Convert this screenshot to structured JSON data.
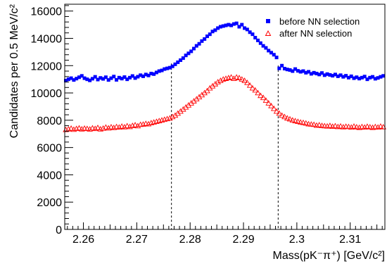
{
  "chart_data": {
    "type": "scatter",
    "title": "",
    "xlabel": "Mass(pK⁻π⁺) [GeV/c²]",
    "ylabel": "Candidates per 0.5 MeV/c²",
    "xlim": [
      2.2565,
      2.3165
    ],
    "ylim": [
      0,
      16500
    ],
    "x_ticks": [
      2.26,
      2.27,
      2.28,
      2.29,
      2.3,
      2.31
    ],
    "x_tick_labels": [
      "2.26",
      "2.27",
      "2.28",
      "2.29",
      "2.3",
      "2.31"
    ],
    "y_ticks": [
      0,
      2000,
      4000,
      6000,
      8000,
      10000,
      12000,
      14000,
      16000
    ],
    "y_tick_labels": [
      "0",
      "2000",
      "4000",
      "6000",
      "8000",
      "10000",
      "12000",
      "14000",
      "16000"
    ],
    "grid": false,
    "legend_position": "top-right",
    "reference_lines_x": [
      2.2765,
      2.2965
    ],
    "series": [
      {
        "name": "before NN selection",
        "marker": "filled-square",
        "color": "#0000ff",
        "x": [
          2.2567,
          2.2572,
          2.2577,
          2.2582,
          2.2587,
          2.2592,
          2.2597,
          2.2602,
          2.2607,
          2.2612,
          2.2617,
          2.2622,
          2.2627,
          2.2632,
          2.2637,
          2.2642,
          2.2647,
          2.2652,
          2.2657,
          2.2662,
          2.2667,
          2.2672,
          2.2677,
          2.2682,
          2.2687,
          2.2692,
          2.2697,
          2.2702,
          2.2707,
          2.2712,
          2.2717,
          2.2722,
          2.2727,
          2.2732,
          2.2737,
          2.2742,
          2.2747,
          2.2752,
          2.2757,
          2.2762,
          2.2767,
          2.2772,
          2.2777,
          2.2782,
          2.2787,
          2.2792,
          2.2797,
          2.2802,
          2.2807,
          2.2812,
          2.2817,
          2.2822,
          2.2827,
          2.2832,
          2.2837,
          2.2842,
          2.2847,
          2.2852,
          2.2857,
          2.2862,
          2.2867,
          2.2872,
          2.2877,
          2.2882,
          2.2887,
          2.2892,
          2.2897,
          2.2902,
          2.2907,
          2.2912,
          2.2917,
          2.2922,
          2.2927,
          2.2932,
          2.2937,
          2.2942,
          2.2947,
          2.2952,
          2.2957,
          2.2962,
          2.2967,
          2.2972,
          2.2977,
          2.2982,
          2.2987,
          2.2992,
          2.2997,
          2.3002,
          2.3007,
          2.3012,
          2.3017,
          2.3022,
          2.3027,
          2.3032,
          2.3037,
          2.3042,
          2.3047,
          2.3052,
          2.3057,
          2.3062,
          2.3067,
          2.3072,
          2.3077,
          2.3082,
          2.3087,
          2.3092,
          2.3097,
          2.3102,
          2.3107,
          2.3112,
          2.3117,
          2.3122,
          2.3127,
          2.3132,
          2.3137,
          2.3142,
          2.3147,
          2.3152,
          2.3157,
          2.3162
        ],
        "values": [
          10900,
          11000,
          11080,
          10950,
          11050,
          11150,
          11250,
          11080,
          11000,
          10920,
          11040,
          11180,
          10980,
          11100,
          11030,
          11150,
          10950,
          11080,
          11200,
          10960,
          11120,
          11050,
          11160,
          11000,
          11120,
          11240,
          11090,
          11190,
          11300,
          11220,
          11350,
          11280,
          11420,
          11380,
          11500,
          11600,
          11650,
          11750,
          11800,
          11850,
          11950,
          12100,
          12250,
          12400,
          12550,
          12750,
          12900,
          13050,
          13250,
          13450,
          13600,
          13800,
          13950,
          14150,
          14300,
          14500,
          14600,
          14750,
          14850,
          14900,
          14950,
          15000,
          14950,
          15050,
          15100,
          14850,
          15000,
          14750,
          14650,
          14450,
          14300,
          14050,
          13850,
          13650,
          13450,
          13300,
          13100,
          12950,
          12800,
          12600,
          11800,
          12000,
          11780,
          11720,
          11680,
          11600,
          11750,
          11620,
          11550,
          11600,
          11480,
          11550,
          11400,
          11480,
          11420,
          11350,
          11460,
          11300,
          11380,
          11320,
          11260,
          11350,
          11220,
          11300,
          11180,
          11260,
          11120,
          11220,
          11080,
          11150,
          11050,
          11120,
          11200,
          11000,
          11120,
          11180,
          11040,
          11100,
          11180,
          11250
        ]
      },
      {
        "name": "after NN selection",
        "marker": "open-triangle",
        "color": "#ff0000",
        "x": [
          2.2567,
          2.2572,
          2.2577,
          2.2582,
          2.2587,
          2.2592,
          2.2597,
          2.2602,
          2.2607,
          2.2612,
          2.2617,
          2.2622,
          2.2627,
          2.2632,
          2.2637,
          2.2642,
          2.2647,
          2.2652,
          2.2657,
          2.2662,
          2.2667,
          2.2672,
          2.2677,
          2.2682,
          2.2687,
          2.2692,
          2.2697,
          2.2702,
          2.2707,
          2.2712,
          2.2717,
          2.2722,
          2.2727,
          2.2732,
          2.2737,
          2.2742,
          2.2747,
          2.2752,
          2.2757,
          2.2762,
          2.2767,
          2.2772,
          2.2777,
          2.2782,
          2.2787,
          2.2792,
          2.2797,
          2.2802,
          2.2807,
          2.2812,
          2.2817,
          2.2822,
          2.2827,
          2.2832,
          2.2837,
          2.2842,
          2.2847,
          2.2852,
          2.2857,
          2.2862,
          2.2867,
          2.2872,
          2.2877,
          2.2882,
          2.2887,
          2.2892,
          2.2897,
          2.2902,
          2.2907,
          2.2912,
          2.2917,
          2.2922,
          2.2927,
          2.2932,
          2.2937,
          2.2942,
          2.2947,
          2.2952,
          2.2957,
          2.2962,
          2.2967,
          2.2972,
          2.2977,
          2.2982,
          2.2987,
          2.2992,
          2.2997,
          2.3002,
          2.3007,
          2.3012,
          2.3017,
          2.3022,
          2.3027,
          2.3032,
          2.3037,
          2.3042,
          2.3047,
          2.3052,
          2.3057,
          2.3062,
          2.3067,
          2.3072,
          2.3077,
          2.3082,
          2.3087,
          2.3092,
          2.3097,
          2.3102,
          2.3107,
          2.3112,
          2.3117,
          2.3122,
          2.3127,
          2.3132,
          2.3137,
          2.3142,
          2.3147,
          2.3152,
          2.3157,
          2.3162
        ],
        "values": [
          7300,
          7350,
          7400,
          7320,
          7380,
          7420,
          7350,
          7400,
          7380,
          7340,
          7420,
          7380,
          7450,
          7350,
          7400,
          7480,
          7420,
          7500,
          7450,
          7520,
          7480,
          7550,
          7500,
          7580,
          7520,
          7600,
          7650,
          7580,
          7680,
          7700,
          7750,
          7720,
          7800,
          7850,
          7900,
          7950,
          8000,
          8050,
          8100,
          8150,
          8250,
          8350,
          8500,
          8650,
          8800,
          8950,
          9100,
          9250,
          9400,
          9550,
          9700,
          9850,
          10000,
          10150,
          10350,
          10500,
          10650,
          10800,
          10900,
          11000,
          11050,
          11100,
          11150,
          11050,
          11150,
          11100,
          11000,
          10900,
          10750,
          10550,
          10350,
          10200,
          10000,
          9800,
          9650,
          9450,
          9250,
          9050,
          8850,
          8650,
          8500,
          8350,
          8250,
          8150,
          8080,
          8000,
          7950,
          7900,
          7850,
          7820,
          7780,
          7720,
          7700,
          7680,
          7620,
          7650,
          7600,
          7580,
          7560,
          7600,
          7540,
          7580,
          7520,
          7560,
          7500,
          7540,
          7520,
          7480,
          7550,
          7500,
          7460,
          7520,
          7480,
          7540,
          7500,
          7460,
          7520,
          7480,
          7550,
          7500
        ]
      }
    ]
  }
}
